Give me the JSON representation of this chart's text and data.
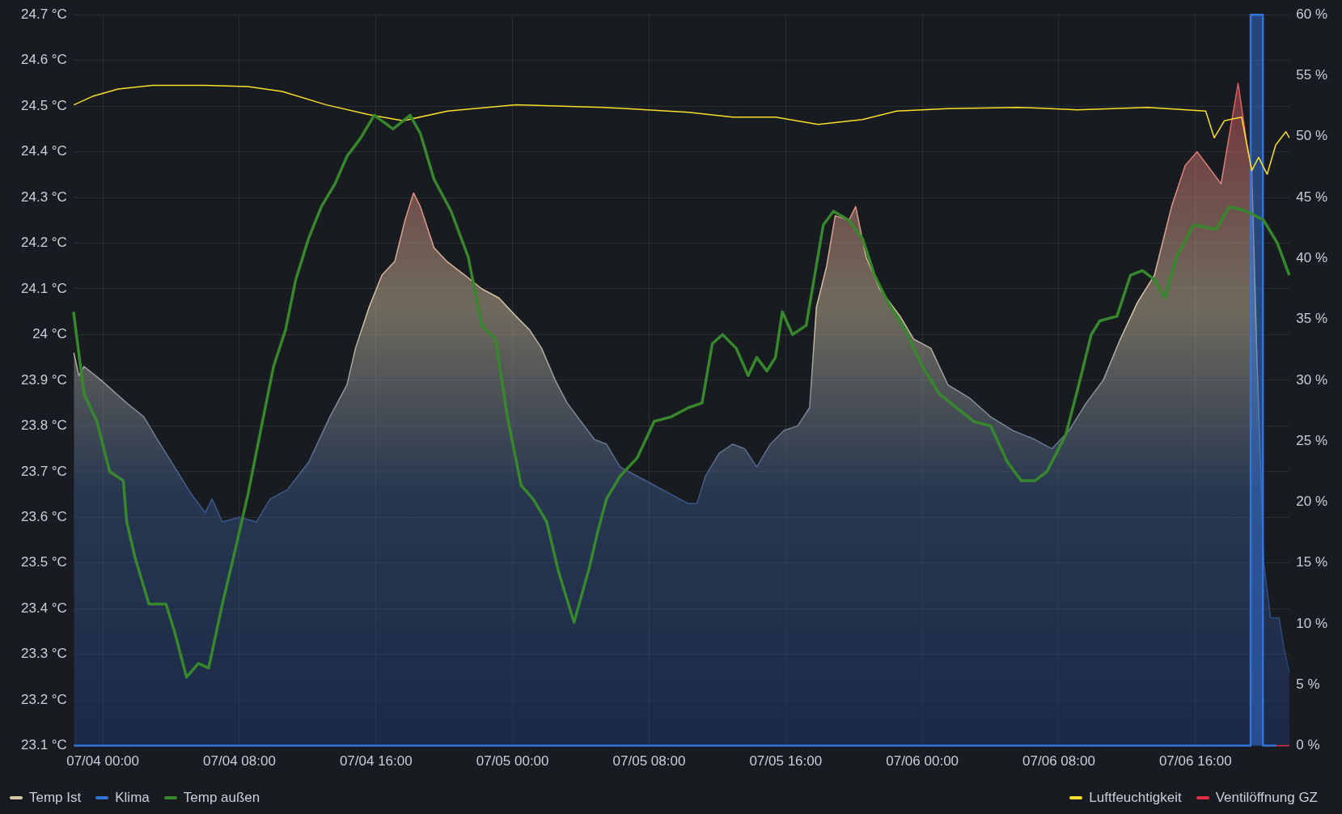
{
  "chart_data": {
    "type": "line",
    "xlim": [
      "--07-03T22:17",
      "--07-06T21:31"
    ],
    "xticks": [
      {
        "value": "--07-04T00:00",
        "label": "07/04 00:00"
      },
      {
        "value": "--07-04T08:00",
        "label": "07/04 08:00"
      },
      {
        "value": "--07-04T16:00",
        "label": "07/04 16:00"
      },
      {
        "value": "--07-05T00:00",
        "label": "07/05 00:00"
      },
      {
        "value": "--07-05T08:00",
        "label": "07/05 08:00"
      },
      {
        "value": "--07-05T16:00",
        "label": "07/05 16:00"
      },
      {
        "value": "--07-06T00:00",
        "label": "07/06 00:00"
      },
      {
        "value": "--07-06T08:00",
        "label": "07/06 08:00"
      },
      {
        "value": "--07-06T16:00",
        "label": "07/06 16:00"
      }
    ],
    "ylim": [
      23.1,
      24.7
    ],
    "yticks": [
      {
        "value": 23.1,
        "label": "23.1 °C"
      },
      {
        "value": 23.2,
        "label": "23.2 °C"
      },
      {
        "value": 23.3,
        "label": "23.3 °C"
      },
      {
        "value": 23.4,
        "label": "23.4 °C"
      },
      {
        "value": 23.5,
        "label": "23.5 °C"
      },
      {
        "value": 23.6,
        "label": "23.6 °C"
      },
      {
        "value": 23.7,
        "label": "23.7 °C"
      },
      {
        "value": 23.8,
        "label": "23.8 °C"
      },
      {
        "value": 23.9,
        "label": "23.9 °C"
      },
      {
        "value": 24,
        "label": "24 °C"
      },
      {
        "value": 24.1,
        "label": "24.1 °C"
      },
      {
        "value": 24.2,
        "label": "24.2 °C"
      },
      {
        "value": 24.3,
        "label": "24.3 °C"
      },
      {
        "value": 24.4,
        "label": "24.4 °C"
      },
      {
        "value": 24.5,
        "label": "24.5 °C"
      },
      {
        "value": 24.6,
        "label": "24.6 °C"
      },
      {
        "value": 24.7,
        "label": "24.7 °C"
      }
    ],
    "y2lim": [
      0,
      60
    ],
    "y2ticks": [
      {
        "value": 0,
        "label": "0 %"
      },
      {
        "value": 5,
        "label": "5 %"
      },
      {
        "value": 10,
        "label": "10 %"
      },
      {
        "value": 15,
        "label": "15 %"
      },
      {
        "value": 20,
        "label": "20 %"
      },
      {
        "value": 25,
        "label": "25 %"
      },
      {
        "value": 30,
        "label": "30 %"
      },
      {
        "value": 35,
        "label": "35 %"
      },
      {
        "value": 40,
        "label": "40 %"
      },
      {
        "value": 45,
        "label": "45 %"
      },
      {
        "value": 50,
        "label": "50 %"
      },
      {
        "value": 55,
        "label": "55 %"
      },
      {
        "value": 60,
        "label": "60 %"
      }
    ],
    "grid": true,
    "legend": "bottom",
    "marker": "none",
    "line_style": "solid",
    "series": [
      {
        "name": "Temp Ist",
        "type": "area",
        "color": "#d8c9a7",
        "x": [
          "--07-03T22:18",
          "--07-03T22:36",
          "--07-03T22:54",
          "--07-03T23:54",
          "--07-04T01:24",
          "--07-04T02:24",
          "--07-04T03:12",
          "--07-04T04:12",
          "--07-04T05:12",
          "--07-04T06:00",
          "--07-04T06:24",
          "--07-04T07:00",
          "--07-04T08:00",
          "--07-04T09:00",
          "--07-04T09:48",
          "--07-04T10:48",
          "--07-04T12:03",
          "--07-04T13:18",
          "--07-04T14:18",
          "--07-04T14:48",
          "--07-04T15:36",
          "--07-04T16:21",
          "--07-04T17:06",
          "--07-04T17:42",
          "--07-04T18:12",
          "--07-04T18:36",
          "--07-04T19:24",
          "--07-04T20:09",
          "--07-04T21:12",
          "--07-04T22:12",
          "--07-04T23:12",
          "--07-05T00:12",
          "--07-05T01:00",
          "--07-05T01:42",
          "--07-05T02:30",
          "--07-05T03:12",
          "--07-05T04:00",
          "--07-05T04:48",
          "--07-05T05:30",
          "--07-05T06:18",
          "--07-05T07:18",
          "--07-05T08:18",
          "--07-05T09:18",
          "--07-05T10:18",
          "--07-05T10:48",
          "--07-05T11:18",
          "--07-05T12:06",
          "--07-05T12:54",
          "--07-05T13:36",
          "--07-05T14:18",
          "--07-05T15:06",
          "--07-05T15:54",
          "--07-05T16:42",
          "--07-05T17:24",
          "--07-05T17:48",
          "--07-05T18:24",
          "--07-05T18:54",
          "--07-05T19:42",
          "--07-05T20:06",
          "--07-05T20:42",
          "--07-05T21:30",
          "--07-05T22:42",
          "--07-05T23:30",
          "--07-06T00:30",
          "--07-06T01:30",
          "--07-06T02:48",
          "--07-06T04:00",
          "--07-06T05:18",
          "--07-06T06:36",
          "--07-06T07:36",
          "--07-06T08:36",
          "--07-06T09:36",
          "--07-06T10:36",
          "--07-06T11:36",
          "--07-06T12:36",
          "--07-06T13:36",
          "--07-06T14:36",
          "--07-06T15:24",
          "--07-06T16:06",
          "--07-06T16:42",
          "--07-06T17:30",
          "--07-06T18:00",
          "--07-06T18:30",
          "--07-06T19:00",
          "--07-06T19:18",
          "--07-06T19:36",
          "--07-06T20:00",
          "--07-06T20:24",
          "--07-06T20:54",
          "--07-06T21:12",
          "--07-06T21:30"
        ],
        "values": [
          23.96,
          23.91,
          23.93,
          23.9,
          23.85,
          23.82,
          23.77,
          23.71,
          23.65,
          23.61,
          23.64,
          23.59,
          23.6,
          23.59,
          23.64,
          23.66,
          23.72,
          23.82,
          23.89,
          23.97,
          24.06,
          24.13,
          24.16,
          24.25,
          24.31,
          24.28,
          24.19,
          24.16,
          24.13,
          24.1,
          24.08,
          24.04,
          24.01,
          23.97,
          23.9,
          23.85,
          23.81,
          23.77,
          23.76,
          23.71,
          23.69,
          23.67,
          23.65,
          23.63,
          23.63,
          23.69,
          23.74,
          23.76,
          23.75,
          23.71,
          23.76,
          23.79,
          23.8,
          23.84,
          24.06,
          24.15,
          24.26,
          24.25,
          24.28,
          24.17,
          24.1,
          24.04,
          23.99,
          23.97,
          23.89,
          23.86,
          23.82,
          23.79,
          23.77,
          23.75,
          23.79,
          23.85,
          23.9,
          23.99,
          24.07,
          24.13,
          24.28,
          24.37,
          24.4,
          24.37,
          24.33,
          24.44,
          24.55,
          24.42,
          24.36,
          23.95,
          23.5,
          23.38,
          23.38,
          23.31,
          23.26
        ]
      },
      {
        "name": "Klima",
        "type": "step",
        "axis": "y2",
        "color": "#3274d9",
        "x": [
          "--07-03T22:18",
          "--07-06T19:14",
          "--07-06T19:57",
          "--07-06T20:45"
        ],
        "values": [
          0,
          60,
          0,
          0
        ]
      },
      {
        "name": "Temp außen",
        "color": "#37872d",
        "x": [
          "--07-03T22:17",
          "--07-03T22:54",
          "--07-03T23:39",
          "--07-04T00:24",
          "--07-04T01:12",
          "--07-04T01:24",
          "--07-04T01:54",
          "--07-04T02:42",
          "--07-04T03:42",
          "--07-04T04:12",
          "--07-04T04:54",
          "--07-04T05:36",
          "--07-04T06:12",
          "--07-04T07:00",
          "--07-04T07:42",
          "--07-04T08:30",
          "--07-04T09:18",
          "--07-04T10:00",
          "--07-04T10:42",
          "--07-04T11:18",
          "--07-04T12:03",
          "--07-04T12:48",
          "--07-04T13:36",
          "--07-04T14:18",
          "--07-04T15:06",
          "--07-04T15:54",
          "--07-04T17:00",
          "--07-04T18:00",
          "--07-04T18:36",
          "--07-04T19:24",
          "--07-04T20:24",
          "--07-04T21:24",
          "--07-04T22:12",
          "--07-04T23:00",
          "--07-04T23:42",
          "--07-05T00:30",
          "--07-05T01:12",
          "--07-05T02:00",
          "--07-05T02:42",
          "--07-05T03:36",
          "--07-05T04:30",
          "--07-05T05:00",
          "--07-05T05:30",
          "--07-05T06:18",
          "--07-05T07:18",
          "--07-05T08:18",
          "--07-05T09:18",
          "--07-05T10:18",
          "--07-05T11:06",
          "--07-05T11:42",
          "--07-05T12:18",
          "--07-05T13:06",
          "--07-05T13:48",
          "--07-05T14:18",
          "--07-05T14:54",
          "--07-05T15:24",
          "--07-05T15:48",
          "--07-05T16:24",
          "--07-05T17:12",
          "--07-05T17:42",
          "--07-05T18:12",
          "--07-05T18:48",
          "--07-05T19:42",
          "--07-05T20:30",
          "--07-05T21:12",
          "--07-05T22:00",
          "--07-05T23:00",
          "--07-06T00:00",
          "--07-06T01:00",
          "--07-06T02:00",
          "--07-06T03:00",
          "--07-06T04:00",
          "--07-06T05:00",
          "--07-06T05:48",
          "--07-06T06:36",
          "--07-06T07:18",
          "--07-06T08:24",
          "--07-06T09:06",
          "--07-06T09:54",
          "--07-06T10:24",
          "--07-06T11:24",
          "--07-06T12:12",
          "--07-06T12:54",
          "--07-06T13:36",
          "--07-06T14:12",
          "--07-06T14:54",
          "--07-06T15:54",
          "--07-06T17:12",
          "--07-06T18:00",
          "--07-06T19:00",
          "--07-06T20:00",
          "--07-06T20:48",
          "--07-06T21:30"
        ],
        "values": [
          24.05,
          23.87,
          23.81,
          23.7,
          23.68,
          23.59,
          23.51,
          23.41,
          23.41,
          23.35,
          23.25,
          23.28,
          23.27,
          23.41,
          23.52,
          23.65,
          23.8,
          23.93,
          24.01,
          24.12,
          24.21,
          24.28,
          24.33,
          24.39,
          24.43,
          24.48,
          24.45,
          24.48,
          24.44,
          24.34,
          24.27,
          24.17,
          24.02,
          23.99,
          23.82,
          23.67,
          23.64,
          23.59,
          23.48,
          23.37,
          23.49,
          23.57,
          23.64,
          23.69,
          23.73,
          23.81,
          23.82,
          23.84,
          23.85,
          23.98,
          24.0,
          23.97,
          23.91,
          23.95,
          23.92,
          23.95,
          24.05,
          24.0,
          24.02,
          24.13,
          24.24,
          24.27,
          24.25,
          24.21,
          24.13,
          24.07,
          24.01,
          23.93,
          23.87,
          23.84,
          23.81,
          23.8,
          23.72,
          23.68,
          23.68,
          23.7,
          23.78,
          23.88,
          24.0,
          24.03,
          24.04,
          24.13,
          24.14,
          24.12,
          24.08,
          24.17,
          24.24,
          24.23,
          24.28,
          24.27,
          24.25,
          24.2,
          24.13
        ]
      },
      {
        "name": "Luftfeuchtigkeit",
        "axis": "y2",
        "color": "#fade2a",
        "x": [
          "--07-03T22:18",
          "--07-03T23:24",
          "--07-04T00:54",
          "--07-04T02:54",
          "--07-04T06:00",
          "--07-04T08:30",
          "--07-04T10:30",
          "--07-04T13:06",
          "--07-04T15:36",
          "--07-04T17:36",
          "--07-04T20:12",
          "--07-05T00:12",
          "--07-05T05:18",
          "--07-05T10:18",
          "--07-05T12:54",
          "--07-05T15:24",
          "--07-05T17:54",
          "--07-05T20:30",
          "--07-05T22:30",
          "--07-06T01:30",
          "--07-06T05:36",
          "--07-06T09:06",
          "--07-06T13:12",
          "--07-06T16:36",
          "--07-06T17:06",
          "--07-06T17:42",
          "--07-06T18:42",
          "--07-06T19:18",
          "--07-06T19:42",
          "--07-06T20:12",
          "--07-06T20:42",
          "--07-06T21:18",
          "--07-06T21:30"
        ],
        "values": [
          52.6,
          53.3,
          53.9,
          54.2,
          54.2,
          54.1,
          53.7,
          52.6,
          51.8,
          51.3,
          52.1,
          52.6,
          52.4,
          52.0,
          51.6,
          51.6,
          51.0,
          51.4,
          52.1,
          52.3,
          52.4,
          52.2,
          52.4,
          52.1,
          49.9,
          51.3,
          51.6,
          47.2,
          48.3,
          46.9,
          49.3,
          50.4,
          49.9
        ]
      },
      {
        "name": "Ventilöffnung GZ",
        "axis": "y2",
        "color": "#e02f44",
        "x": [
          "--07-06T20:45",
          "--07-06T21:30"
        ],
        "values": [
          0,
          0
        ]
      }
    ]
  }
}
